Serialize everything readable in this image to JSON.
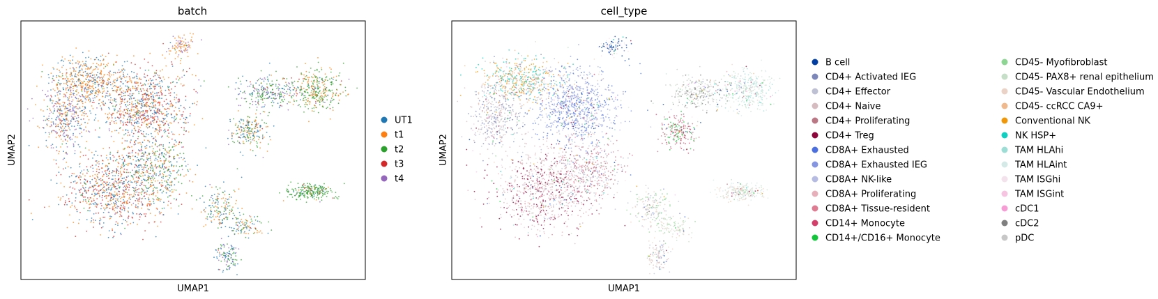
{
  "chart_data": [
    {
      "type": "scatter",
      "title": "batch",
      "xlabel": "UMAP1",
      "ylabel": "UMAP2",
      "grid": false,
      "legend_placement": "right",
      "series": [
        {
          "name": "UT1",
          "color": "#1f77b4"
        },
        {
          "name": "t1",
          "color": "#ff7f0e"
        },
        {
          "name": "t2",
          "color": "#2ca02c"
        },
        {
          "name": "t3",
          "color": "#d62728"
        },
        {
          "name": "t4",
          "color": "#9467bd"
        }
      ]
    },
    {
      "type": "scatter",
      "title": "cell_type",
      "xlabel": "UMAP1",
      "ylabel": "UMAP2",
      "grid": false,
      "legend_placement": "right",
      "legend_columns": 2,
      "series": [
        {
          "name": "B cell",
          "color": "#023fa5"
        },
        {
          "name": "CD4+ Activated IEG",
          "color": "#7d87b9"
        },
        {
          "name": "CD4+ Effector",
          "color": "#bec1d4"
        },
        {
          "name": "CD4+ Naive",
          "color": "#d6bcc0"
        },
        {
          "name": "CD4+ Proliferating",
          "color": "#bb7784"
        },
        {
          "name": "CD4+ Treg",
          "color": "#8e063b"
        },
        {
          "name": "CD8A+ Exhausted",
          "color": "#4a6fe3"
        },
        {
          "name": "CD8A+ Exhausted IEG",
          "color": "#8595e1"
        },
        {
          "name": "CD8A+ NK-like",
          "color": "#b5bbe3"
        },
        {
          "name": "CD8A+ Proliferating",
          "color": "#e6afb9"
        },
        {
          "name": "CD8A+ Tissue-resident",
          "color": "#e07b91"
        },
        {
          "name": "CD14+ Monocyte",
          "color": "#d33f6a"
        },
        {
          "name": "CD14+/CD16+ Monocyte",
          "color": "#11c638"
        },
        {
          "name": "CD45- Myofibroblast",
          "color": "#8dd593"
        },
        {
          "name": "CD45- PAX8+ renal epithelium",
          "color": "#c6dec7"
        },
        {
          "name": "CD45- Vascular Endothelium",
          "color": "#ead3c6"
        },
        {
          "name": "CD45- ccRCC CA9+",
          "color": "#f0b98d"
        },
        {
          "name": "Conventional NK",
          "color": "#ef9708"
        },
        {
          "name": "NK HSP+",
          "color": "#0fcfc0"
        },
        {
          "name": "TAM HLAhi",
          "color": "#9cded6"
        },
        {
          "name": "TAM HLAint",
          "color": "#d5eae7"
        },
        {
          "name": "TAM ISGhi",
          "color": "#f3e1eb"
        },
        {
          "name": "TAM ISGint",
          "color": "#f6c4e1"
        },
        {
          "name": "cDC1",
          "color": "#f79cd4"
        },
        {
          "name": "cDC2",
          "color": "#7f7f7f"
        },
        {
          "name": "pDC",
          "color": "#c7c7c7"
        }
      ]
    }
  ]
}
